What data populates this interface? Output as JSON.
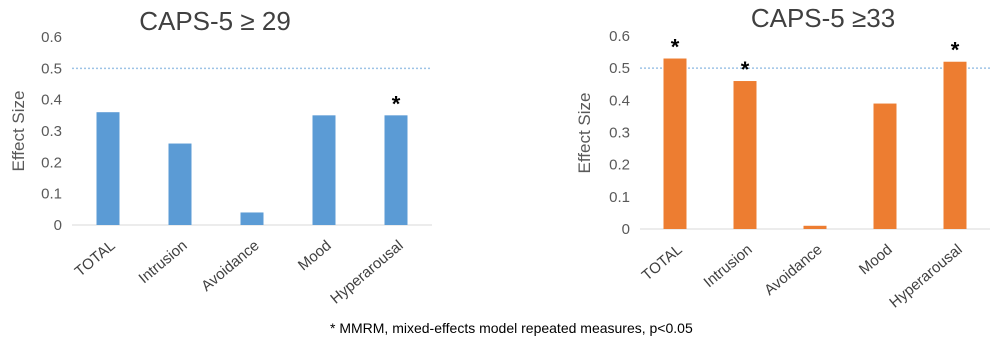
{
  "chart_data": [
    {
      "type": "bar",
      "title": "CAPS-5 ≥ 29",
      "ylabel": "Effect Size",
      "xlabel": "",
      "categories": [
        "TOTAL",
        "Intrusion",
        "Avoidance",
        "Mood",
        "Hyperarousal"
      ],
      "values": [
        0.36,
        0.26,
        0.04,
        0.35,
        0.35
      ],
      "significant": [
        false,
        false,
        false,
        false,
        true
      ],
      "ylim": [
        0,
        0.6
      ],
      "yticks": [
        "0",
        "0.1",
        "0.2",
        "0.3",
        "0.4",
        "0.5",
        "0.6"
      ],
      "reference_line": 0.5,
      "bar_color": "#5B9BD5",
      "reference_color": "#9DC3E6",
      "grid": false
    },
    {
      "type": "bar",
      "title": "CAPS-5 ≥33",
      "ylabel": "Effect Size",
      "xlabel": "",
      "categories": [
        "TOTAL",
        "Intrusion",
        "Avoidance",
        "Mood",
        "Hyperarousal"
      ],
      "values": [
        0.53,
        0.46,
        0.01,
        0.39,
        0.52
      ],
      "significant": [
        true,
        true,
        false,
        false,
        true
      ],
      "ylim": [
        0,
        0.6
      ],
      "yticks": [
        "0",
        "0.1",
        "0.2",
        "0.3",
        "0.4",
        "0.5",
        "0.6"
      ],
      "reference_line": 0.5,
      "bar_color": "#ED7D31",
      "reference_color": "#9DC3E6",
      "grid": false
    }
  ],
  "significance_marker": "*",
  "footnote": "* MMRM, mixed-effects model repeated measures, p<0.05"
}
